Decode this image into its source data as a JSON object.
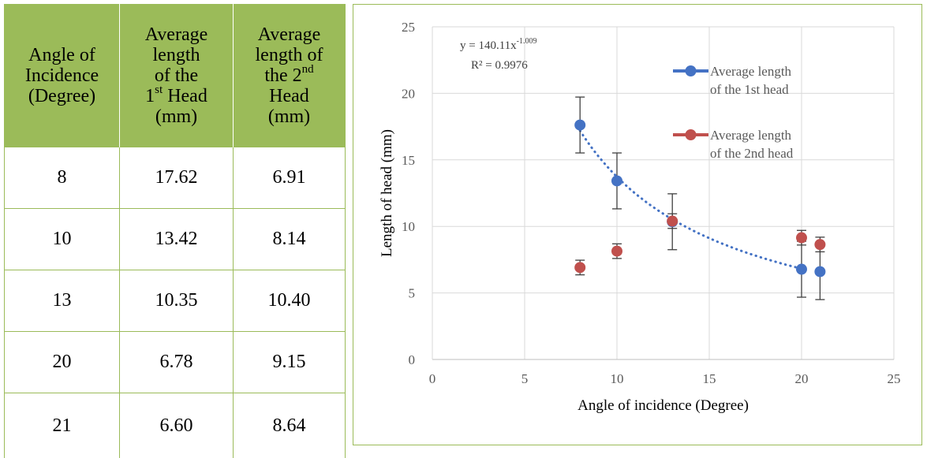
{
  "table": {
    "headers": [
      {
        "lines": [
          "Angle of",
          "Incidence",
          "(Degree)"
        ]
      },
      {
        "lines": [
          "Average",
          "length",
          "of the",
          "1",
          "st",
          " Head",
          "(mm)"
        ]
      },
      {
        "lines": [
          "Average",
          "length of",
          "the 2",
          "nd",
          "Head",
          "(mm)"
        ]
      }
    ],
    "rows": [
      [
        "8",
        "17.62",
        "6.91"
      ],
      [
        "10",
        "13.42",
        "8.14"
      ],
      [
        "13",
        "10.35",
        "10.40"
      ],
      [
        "20",
        "6.78",
        "9.15"
      ],
      [
        "21",
        "6.60",
        "8.64"
      ]
    ]
  },
  "chart_data": {
    "type": "scatter",
    "xlabel": "Angle of incidence (Degree)",
    "ylabel": "Length of head (mm)",
    "xlim": [
      0,
      25
    ],
    "ylim": [
      0,
      25
    ],
    "x_ticks": [
      "0",
      "5",
      "10",
      "15",
      "20",
      "25"
    ],
    "y_ticks": [
      "0",
      "5",
      "10",
      "15",
      "20",
      "25"
    ],
    "grid": true,
    "legend_position": "top-right",
    "series": [
      {
        "name": "Average length of the 1st head",
        "legend_lines": [
          "Average length",
          "of the 1st head"
        ],
        "color": "#4472c4",
        "x": [
          8,
          10,
          13,
          20,
          21
        ],
        "y": [
          17.62,
          13.42,
          10.35,
          6.78,
          6.6
        ],
        "error": [
          2.1,
          2.1,
          2.1,
          2.1,
          2.1
        ]
      },
      {
        "name": "Average length of the 2nd head",
        "legend_lines": [
          "Average length",
          "of the 2nd head"
        ],
        "color": "#c0504d",
        "x": [
          8,
          10,
          13,
          20,
          21
        ],
        "y": [
          6.91,
          8.14,
          10.4,
          9.15,
          8.64
        ],
        "error": [
          0.55,
          0.55,
          0.55,
          0.55,
          0.55
        ]
      }
    ],
    "trendline": {
      "type": "power",
      "a": 140.11,
      "b": -1.009,
      "x_range": [
        8,
        20
      ],
      "equation_base": "y = 140.11x",
      "equation_exp": "-1.009",
      "r2_text": "R² = 0.9976",
      "color": "#4472c4"
    }
  }
}
